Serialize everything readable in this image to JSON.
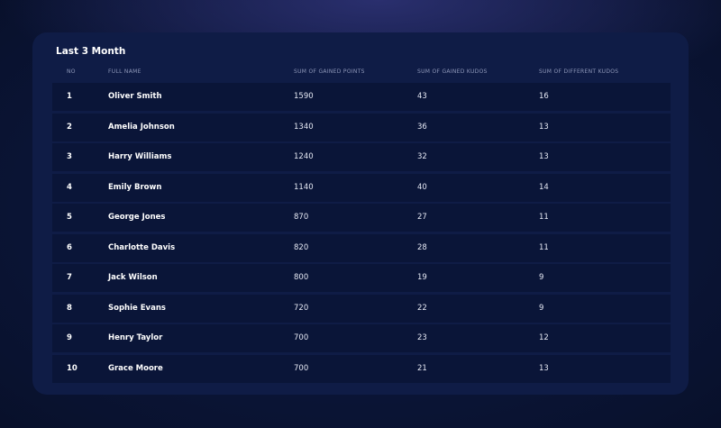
{
  "table": {
    "title": "Last 3 Month",
    "columns": [
      "NO",
      "FULL NAME",
      "SUM OF GAINED POINTS",
      "SUM OF GAINED KUDOS",
      "SUM OF DIFFERENT KUDOS"
    ],
    "rows": [
      [
        "1",
        "Oliver Smith",
        "1590",
        "43",
        "16"
      ],
      [
        "2",
        "Amelia Johnson",
        "1340",
        "36",
        "13"
      ],
      [
        "3",
        "Harry Williams",
        "1240",
        "32",
        "13"
      ],
      [
        "4",
        "Emily Brown",
        "1140",
        "40",
        "14"
      ],
      [
        "5",
        "George Jones",
        "870",
        "27",
        "11"
      ],
      [
        "6",
        "Charlotte Davis",
        "820",
        "28",
        "11"
      ],
      [
        "7",
        "Jack Wilson",
        "800",
        "19",
        "9"
      ],
      [
        "8",
        "Sophie Evans",
        "720",
        "22",
        "9"
      ],
      [
        "9",
        "Henry Taylor",
        "700",
        "23",
        "12"
      ],
      [
        "10",
        "Grace Moore",
        "700",
        "21",
        "13"
      ]
    ]
  }
}
